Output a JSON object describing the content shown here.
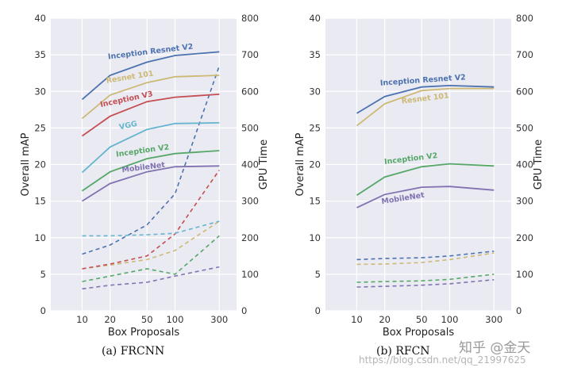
{
  "chart_data": [
    {
      "id": "frcnn",
      "type": "line",
      "title": "(a) FRCNN",
      "xlabel": "Box Proposals",
      "ylabel": "Overall mAP",
      "ylabel_right": "GPU Time",
      "x_scale": "log",
      "x": [
        10,
        20,
        50,
        100,
        300
      ],
      "xticks": [
        "10",
        "20",
        "50",
        "100",
        "300"
      ],
      "ylim": [
        0,
        40
      ],
      "yticks": [
        "0",
        "5",
        "10",
        "15",
        "20",
        "25",
        "30",
        "35",
        "40"
      ],
      "ylim_right": [
        0,
        800
      ],
      "yticks_right": [
        "0",
        "100",
        "200",
        "300",
        "400",
        "500",
        "600",
        "700",
        "800"
      ],
      "series": [
        {
          "name": "Inception Resnet V2",
          "color": "#4c72b0",
          "map": [
            28.9,
            32.2,
            34.0,
            34.9,
            35.4
          ],
          "gpu_time": [
            155,
            180,
            235,
            320,
            670
          ]
        },
        {
          "name": "Resnet 101",
          "color": "#ccb974",
          "map": [
            26.3,
            29.5,
            31.2,
            32.0,
            32.2
          ],
          "gpu_time": [
            115,
            125,
            140,
            165,
            245
          ]
        },
        {
          "name": "Inception V3",
          "color": "#c44e52",
          "map": [
            23.9,
            26.6,
            28.6,
            29.2,
            29.6
          ],
          "gpu_time": [
            115,
            128,
            150,
            210,
            385
          ]
        },
        {
          "name": "VGG",
          "color": "#64b5cd",
          "map": [
            18.9,
            22.4,
            24.8,
            25.6,
            25.7
          ],
          "gpu_time": [
            205,
            205,
            208,
            212,
            245
          ]
        },
        {
          "name": "Inception V2",
          "color": "#55a868",
          "map": [
            16.4,
            19.0,
            20.8,
            21.5,
            21.9
          ],
          "gpu_time": [
            80,
            95,
            115,
            100,
            205
          ]
        },
        {
          "name": "MobileNet",
          "color": "#8172b2",
          "map": [
            15.0,
            17.4,
            19.0,
            19.7,
            19.8
          ],
          "gpu_time": [
            60,
            70,
            78,
            95,
            120
          ]
        }
      ]
    },
    {
      "id": "rfcn",
      "type": "line",
      "title": "(b) RFCN",
      "xlabel": "Box Proposals",
      "ylabel": "Overall mAP",
      "ylabel_right": "GPU Time",
      "x_scale": "log",
      "x": [
        10,
        20,
        50,
        100,
        300
      ],
      "xticks": [
        "10",
        "20",
        "50",
        "100",
        "300"
      ],
      "ylim": [
        0,
        40
      ],
      "yticks": [
        "0",
        "5",
        "10",
        "15",
        "20",
        "25",
        "30",
        "35",
        "40"
      ],
      "ylim_right": [
        0,
        800
      ],
      "yticks_right": [
        "0",
        "100",
        "200",
        "300",
        "400",
        "500",
        "600",
        "700",
        "800"
      ],
      "series": [
        {
          "name": "Inception Resnet V2",
          "color": "#4c72b0",
          "map": [
            27.0,
            29.3,
            30.6,
            30.8,
            30.6
          ],
          "gpu_time": [
            140,
            143,
            145,
            150,
            163
          ]
        },
        {
          "name": "Resnet 101",
          "color": "#ccb974",
          "map": [
            25.3,
            28.3,
            30.1,
            30.4,
            30.4
          ],
          "gpu_time": [
            127,
            128,
            132,
            140,
            158
          ]
        },
        {
          "name": "Inception V2",
          "color": "#55a868",
          "map": [
            15.8,
            18.3,
            19.7,
            20.1,
            19.8
          ],
          "gpu_time": [
            78,
            80,
            82,
            86,
            100
          ]
        },
        {
          "name": "MobileNet",
          "color": "#8172b2",
          "map": [
            14.1,
            15.9,
            16.9,
            17.0,
            16.5
          ],
          "gpu_time": [
            65,
            67,
            70,
            74,
            85
          ]
        }
      ]
    }
  ],
  "watermark": {
    "brand": "知乎 @金天",
    "url": "https://blog.csdn.net/qq_21997625"
  }
}
